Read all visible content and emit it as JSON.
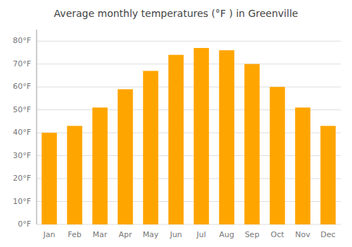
{
  "chart_data": {
    "type": "bar",
    "title": "Average monthly temperatures (°F ) in Greenville",
    "categories": [
      "Jan",
      "Feb",
      "Mar",
      "Apr",
      "May",
      "Jun",
      "Jul",
      "Aug",
      "Sep",
      "Oct",
      "Nov",
      "Dec"
    ],
    "values": [
      40,
      43,
      51,
      59,
      67,
      74,
      77,
      76,
      70,
      60,
      51,
      43
    ],
    "color": "#FFA500",
    "ylim": [
      0,
      85
    ],
    "yticks": [
      {
        "value": 0,
        "label": "0°F"
      },
      {
        "value": 10,
        "label": "10°F"
      },
      {
        "value": 20,
        "label": "20°F"
      },
      {
        "value": 30,
        "label": "30°F"
      },
      {
        "value": 40,
        "label": "40°F"
      },
      {
        "value": 50,
        "label": "50°F"
      },
      {
        "value": 60,
        "label": "60°F"
      },
      {
        "value": 70,
        "label": "70°F"
      },
      {
        "value": 80,
        "label": "80°F"
      }
    ],
    "grid": true
  }
}
